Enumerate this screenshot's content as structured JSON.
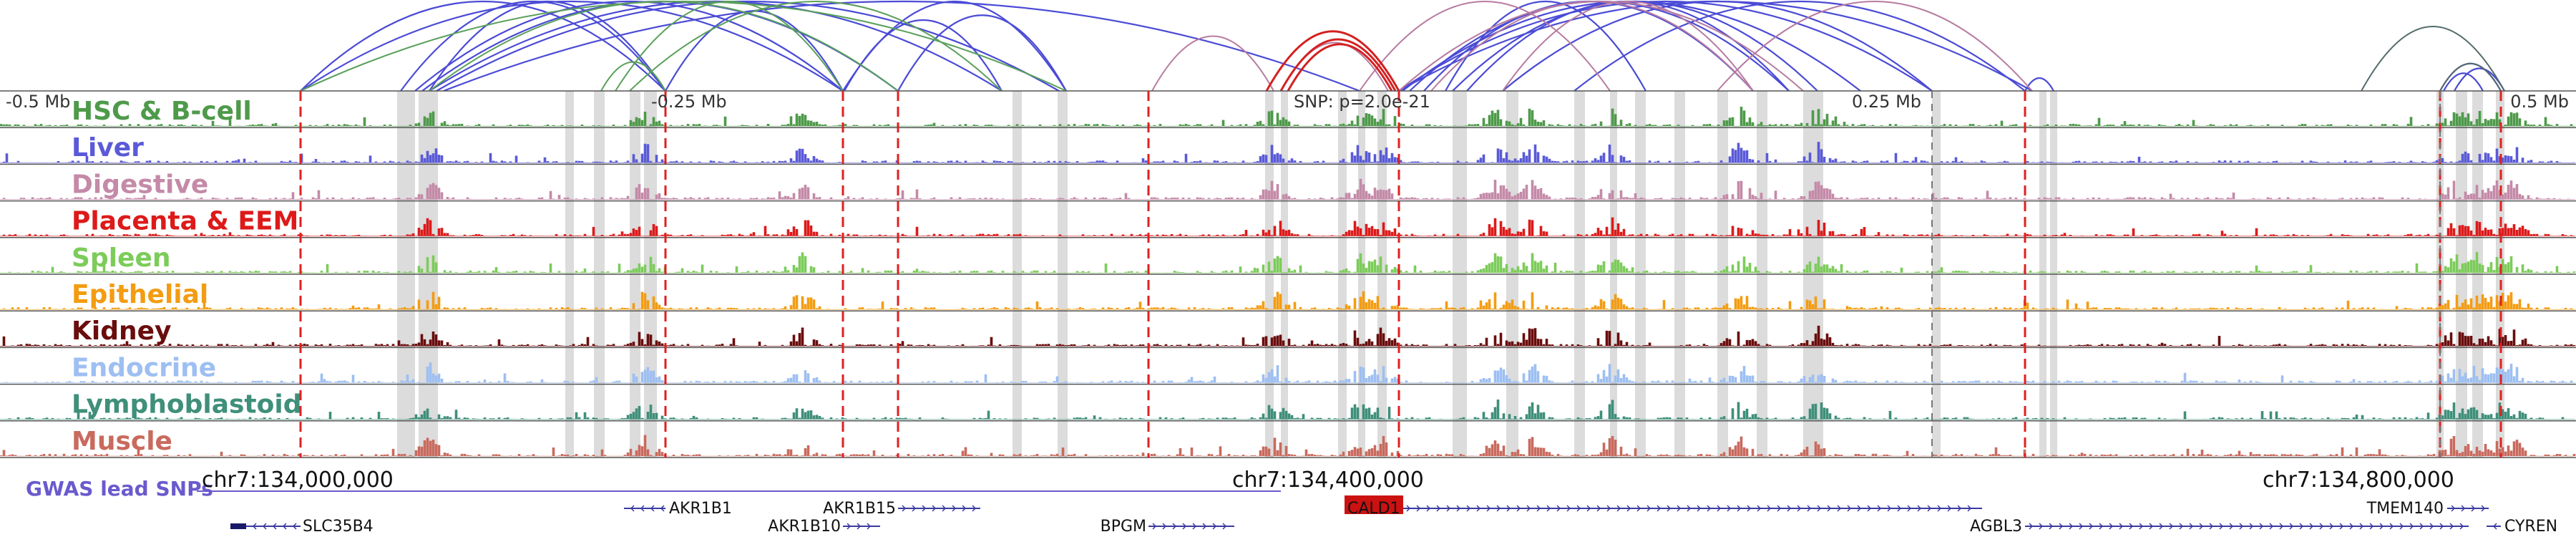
{
  "tracks": [
    {
      "name": "HSC & B-cell",
      "color": "#4e9a4a"
    },
    {
      "name": "Liver",
      "color": "#5a5ad8"
    },
    {
      "name": "Digestive",
      "color": "#c48aa8"
    },
    {
      "name": "Placenta & EEM",
      "color": "#dd1a1a"
    },
    {
      "name": "Spleen",
      "color": "#7ccc5a"
    },
    {
      "name": "Epithelial",
      "color": "#f39c12"
    },
    {
      "name": "Kidney",
      "color": "#6a0d0d"
    },
    {
      "name": "Endocrine",
      "color": "#9dbff2"
    },
    {
      "name": "Lymphoblastoid",
      "color": "#3f8f7a"
    },
    {
      "name": "Muscle",
      "color": "#c96a5e"
    }
  ],
  "axis_labels": {
    "left": "-0.5 Mb",
    "quarter_left": "-0.25 Mb",
    "snp": "SNP: p=2.0e-21",
    "quarter_right": "0.25 Mb",
    "right": "0.5 Mb"
  },
  "gwas_label": "GWAS lead SNPs",
  "coordinates": [
    "chr7:134,000,000",
    "chr7:134,400,000",
    "chr7:134,800,000"
  ],
  "genes": [
    {
      "name": "SLC35B4",
      "highlight": false
    },
    {
      "name": "AKR1B1",
      "highlight": false
    },
    {
      "name": "AKR1B15",
      "highlight": false
    },
    {
      "name": "AKR1B10",
      "highlight": false
    },
    {
      "name": "BPGM",
      "highlight": false
    },
    {
      "name": "CALD1",
      "highlight": true
    },
    {
      "name": "AGBL3",
      "highlight": false
    },
    {
      "name": "TMEM140",
      "highlight": false
    },
    {
      "name": "CYREN",
      "highlight": false
    }
  ],
  "colors": {
    "gwas": "#6a5acd",
    "loop_blue": "#4b4bd6",
    "loop_green": "#5aa05a",
    "loop_mauve": "#b77ba0",
    "loop_red": "#d42020",
    "marker": "#e02020",
    "highlight_band": "#dcdcdc",
    "gene_line": "#3a3aa0",
    "highlight_gene": "#cc1111"
  }
}
